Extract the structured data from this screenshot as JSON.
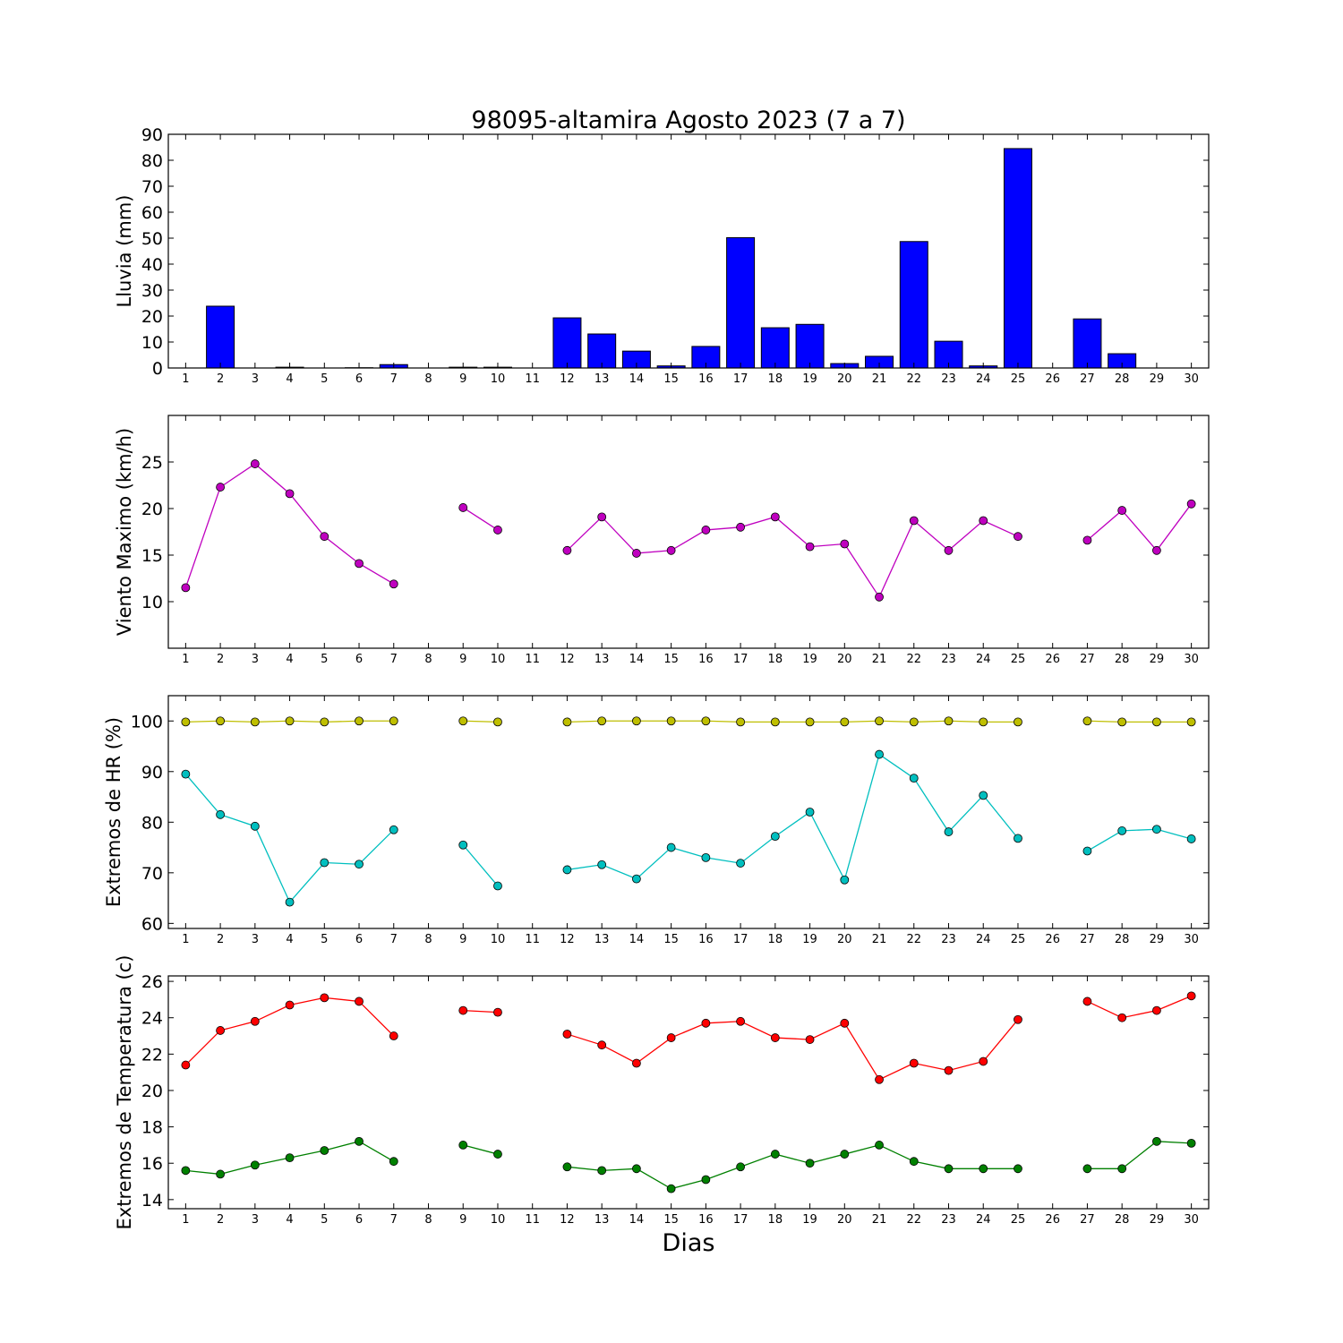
{
  "chart_data": {
    "title": "98095-altamira Agosto 2023  (7 a 7)",
    "xlabel": "Dias",
    "days": [
      1,
      2,
      3,
      4,
      5,
      6,
      7,
      8,
      9,
      10,
      11,
      12,
      13,
      14,
      15,
      16,
      17,
      18,
      19,
      20,
      21,
      22,
      23,
      24,
      25,
      26,
      27,
      28,
      29,
      30
    ],
    "panels": [
      {
        "type": "bar",
        "ylabel": "Lluvia (mm)",
        "ylim": [
          0,
          90
        ],
        "yticks": [
          0,
          10,
          20,
          30,
          40,
          50,
          60,
          70,
          80,
          90
        ],
        "series": [
          {
            "color": "#0000ff",
            "values": [
              0,
              23.8,
              0,
              0.3,
              0,
              0.1,
              1.3,
              0,
              0.3,
              0.3,
              0,
              19.3,
              13.1,
              6.5,
              0.8,
              8.3,
              50.2,
              15.5,
              16.8,
              1.7,
              4.5,
              48.7,
              10.3,
              0.8,
              84.5,
              0,
              18.9,
              5.5,
              0,
              0
            ]
          }
        ]
      },
      {
        "type": "line",
        "ylabel": "Viento Maximo (km/h)",
        "ylim": [
          5,
          30
        ],
        "yticks": [
          10,
          15,
          20,
          25
        ],
        "series": [
          {
            "color": "#bf00bf",
            "values": [
              11.5,
              22.3,
              24.8,
              21.6,
              17.0,
              14.1,
              11.9,
              null,
              20.1,
              17.7,
              null,
              15.5,
              19.1,
              15.2,
              15.5,
              17.7,
              18.0,
              19.1,
              15.9,
              16.2,
              10.5,
              18.7,
              15.5,
              18.7,
              17.0,
              null,
              16.6,
              19.8,
              15.5,
              20.5
            ]
          }
        ]
      },
      {
        "type": "line",
        "ylabel": "Extremos de HR (%)",
        "ylim": [
          59,
          105
        ],
        "yticks": [
          60,
          70,
          80,
          90,
          100
        ],
        "series": [
          {
            "color": "#bfbf00",
            "values": [
              99.8,
              100,
              99.8,
              100,
              99.8,
              100,
              100,
              null,
              100,
              99.8,
              null,
              99.8,
              100,
              100,
              100,
              100,
              99.8,
              99.8,
              99.8,
              99.8,
              100,
              99.8,
              100,
              99.8,
              99.8,
              null,
              100,
              99.8,
              99.8,
              99.8
            ]
          },
          {
            "color": "#00bfbf",
            "values": [
              89.5,
              81.5,
              79.2,
              64.2,
              72.0,
              71.7,
              78.5,
              null,
              75.5,
              67.4,
              null,
              70.6,
              71.6,
              68.8,
              75.0,
              73.0,
              71.9,
              77.2,
              82.0,
              68.6,
              93.4,
              88.7,
              78.1,
              85.3,
              76.8,
              null,
              74.3,
              78.3,
              78.6,
              76.7
            ]
          }
        ]
      },
      {
        "type": "line",
        "ylabel": "Extremos de Temperatura (c)",
        "ylim": [
          13.5,
          26.3
        ],
        "yticks": [
          14,
          16,
          18,
          20,
          22,
          24,
          26
        ],
        "series": [
          {
            "color": "#ff0000",
            "values": [
              21.4,
              23.3,
              23.8,
              24.7,
              25.1,
              24.9,
              23.0,
              null,
              24.4,
              24.3,
              null,
              23.1,
              22.5,
              21.5,
              22.9,
              23.7,
              23.8,
              22.9,
              22.8,
              23.7,
              20.6,
              21.5,
              21.1,
              21.6,
              23.9,
              null,
              24.9,
              24.0,
              24.4,
              25.2
            ]
          },
          {
            "color": "#008000",
            "values": [
              15.6,
              15.4,
              15.9,
              16.3,
              16.7,
              17.2,
              16.1,
              null,
              17.0,
              16.5,
              null,
              15.8,
              15.6,
              15.7,
              14.6,
              15.1,
              15.8,
              16.5,
              16.0,
              16.5,
              17.0,
              16.1,
              15.7,
              15.7,
              15.7,
              null,
              15.7,
              15.7,
              17.2,
              17.1
            ]
          }
        ]
      }
    ]
  }
}
